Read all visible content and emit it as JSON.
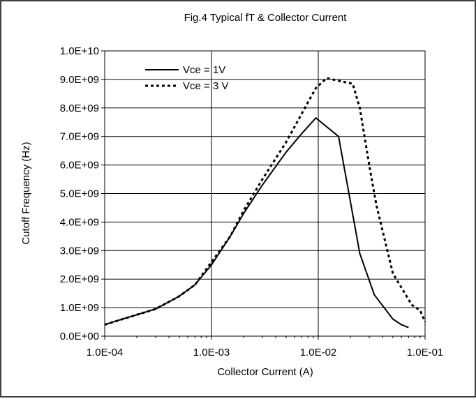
{
  "chart_data": {
    "type": "line",
    "title": "Fig.4 Typical fT & Collector Current",
    "xlabel": "Collector Current (A)",
    "ylabel": "Cutoff Frequency (Hz)",
    "x_scale": "log",
    "xlim": [
      0.0001,
      0.1
    ],
    "ylim": [
      0,
      10000000000
    ],
    "grid": true,
    "legend_position": "top-left",
    "x_ticks": [
      0.0001,
      0.001,
      0.01,
      0.1
    ],
    "x_tick_labels": [
      "1.0E-04",
      "1.0E-03",
      "1.0E-02",
      "1.0E-01"
    ],
    "y_ticks": [
      0,
      1000000000,
      2000000000,
      3000000000,
      4000000000,
      5000000000,
      6000000000,
      7000000000,
      8000000000,
      9000000000,
      10000000000
    ],
    "y_tick_labels": [
      "0.0E+00",
      "1.0E+09",
      "2.0E+09",
      "3.0E+09",
      "4.0E+09",
      "5.0E+09",
      "6.0E+09",
      "7.0E+09",
      "8.0E+09",
      "9.0E+09",
      "1.0E+10"
    ],
    "series": [
      {
        "name": "Vce = 1V",
        "line_style": "solid",
        "color": "#000000",
        "x": [
          0.0001,
          0.00012,
          0.0002,
          0.0003,
          0.0005,
          0.0007,
          0.001,
          0.0015,
          0.002,
          0.003,
          0.005,
          0.007,
          0.0095,
          0.0155,
          0.0245,
          0.0335,
          0.05,
          0.06,
          0.07
        ],
        "y": [
          400000000,
          500000000,
          750000000,
          950000000,
          1400000000,
          1800000000,
          2500000000,
          3500000000,
          4300000000,
          5300000000,
          6450000000,
          7100000000,
          7650000000,
          7000000000,
          2900000000,
          1450000000,
          600000000,
          400000000,
          300000000
        ]
      },
      {
        "name": "Vce = 3 V",
        "line_style": "dotted",
        "color": "#000000",
        "x": [
          0.0001,
          0.0002,
          0.0003,
          0.0005,
          0.0007,
          0.001,
          0.0015,
          0.002,
          0.003,
          0.005,
          0.007,
          0.0095,
          0.012,
          0.0155,
          0.021,
          0.0245,
          0.03,
          0.035,
          0.05,
          0.075,
          0.09,
          0.1
        ],
        "y": [
          400000000,
          750000000,
          950000000,
          1400000000,
          1800000000,
          2600000000,
          3500000000,
          4400000000,
          5500000000,
          6800000000,
          7800000000,
          8700000000,
          9050000000,
          8950000000,
          8850000000,
          8000000000,
          6000000000,
          4600000000,
          2200000000,
          1100000000,
          900000000,
          500000000
        ]
      }
    ]
  }
}
